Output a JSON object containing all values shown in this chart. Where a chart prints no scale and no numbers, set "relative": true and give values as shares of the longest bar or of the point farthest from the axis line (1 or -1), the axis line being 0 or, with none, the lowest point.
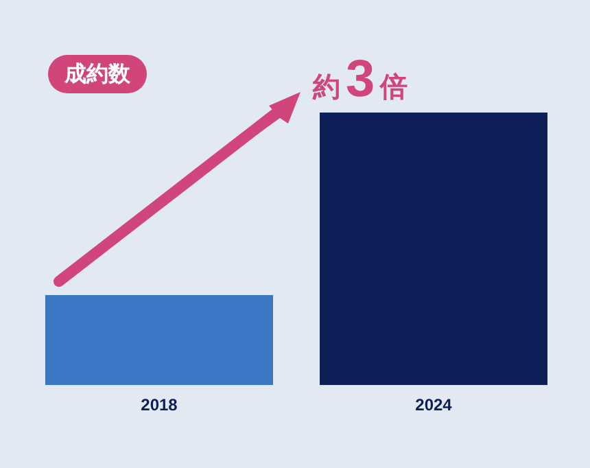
{
  "chart_data": {
    "type": "bar",
    "title": "成約数",
    "categories": [
      "2018",
      "2024"
    ],
    "values": [
      0.33,
      1
    ],
    "colors": [
      "#3a78c4",
      "#0e1f57"
    ],
    "relative": true,
    "annotations": [
      "約3倍"
    ],
    "grid": false,
    "legend": false
  }
}
